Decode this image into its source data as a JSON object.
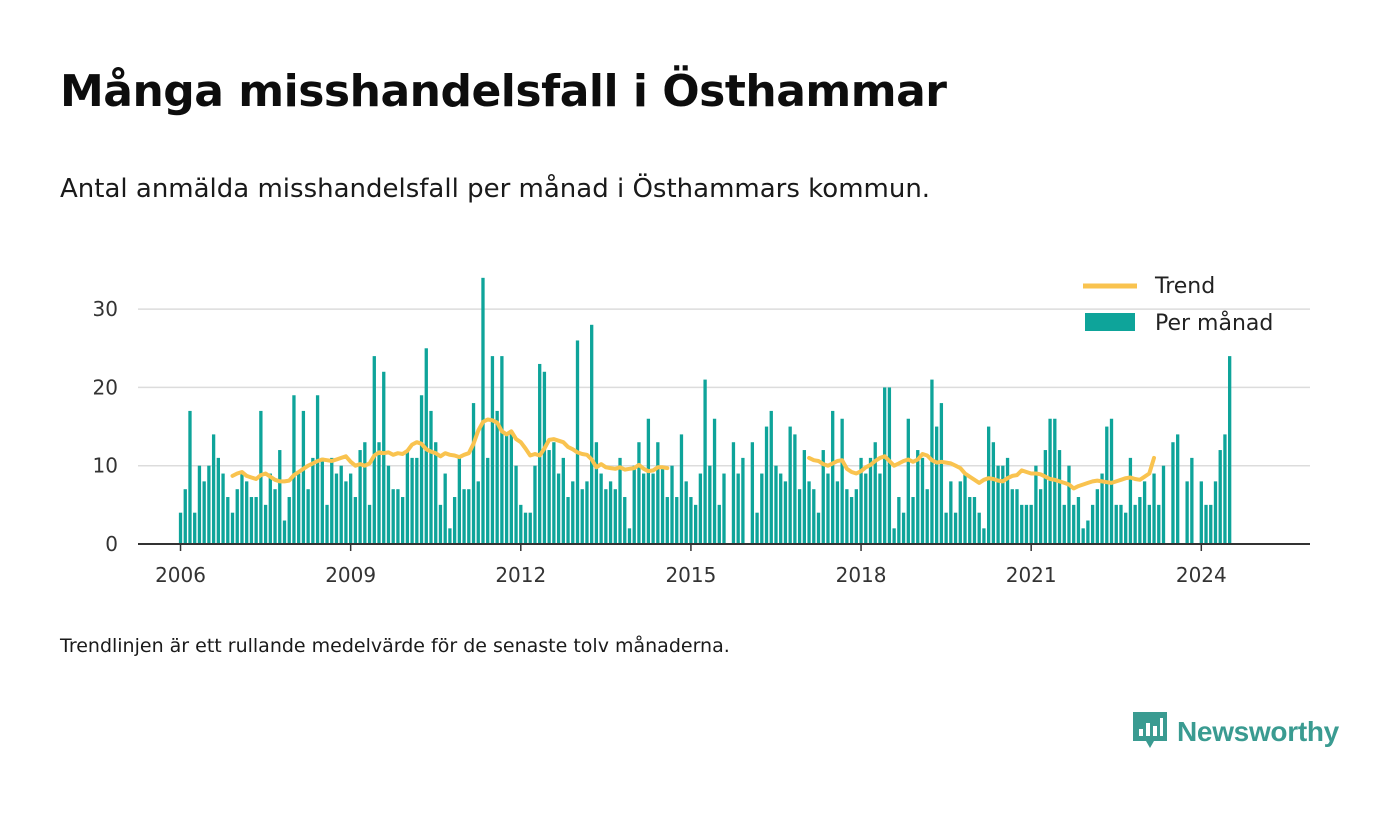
{
  "header": {
    "title": "Många misshandelsfall i Östhammar",
    "subtitle": "Antal anmälda misshandelsfall per månad i Östhammars kommun."
  },
  "footer": {
    "note": "Trendlinjen är ett rullande medelvärde för de senaste tolv månaderna.",
    "brand": "Newsworthy"
  },
  "colors": {
    "bars": "#0ea49a",
    "trend": "#f9c34f",
    "grid": "#dcdcdc",
    "axis": "#333333",
    "brand": "#3a9b91"
  },
  "chart_data": {
    "type": "bar",
    "title": "Många misshandelsfall i Östhammar",
    "subtitle": "Antal anmälda misshandelsfall per månad i Östhammars kommun.",
    "start": "2006-01",
    "xlim": [
      "2005-04",
      "2025-12"
    ],
    "ylim": [
      0,
      35
    ],
    "x_ticks": [
      "2006",
      "2009",
      "2012",
      "2015",
      "2018",
      "2021",
      "2024"
    ],
    "y_ticks": [
      0,
      10,
      20,
      30
    ],
    "grid": true,
    "legend_position": "top-right",
    "series": [
      {
        "name": "Per månad",
        "type": "bar",
        "values": [
          4,
          7,
          17,
          4,
          10,
          8,
          10,
          14,
          11,
          9,
          6,
          4,
          7,
          9,
          8,
          6,
          6,
          17,
          5,
          9,
          7,
          12,
          3,
          6,
          19,
          9,
          17,
          7,
          11,
          19,
          11,
          5,
          11,
          9,
          10,
          8,
          9,
          6,
          12,
          13,
          5,
          24,
          13,
          22,
          10,
          7,
          7,
          6,
          12,
          11,
          11,
          19,
          25,
          17,
          13,
          5,
          9,
          2,
          6,
          11,
          7,
          7,
          18,
          8,
          34,
          11,
          24,
          17,
          24,
          14,
          14,
          10,
          5,
          4,
          4,
          10,
          23,
          22,
          12,
          13,
          9,
          11,
          6,
          8,
          26,
          7,
          8,
          28,
          13,
          9,
          7,
          8,
          7,
          11,
          6,
          2,
          10,
          13,
          9,
          16,
          9,
          13,
          10,
          6,
          10,
          6,
          14,
          8,
          6,
          5,
          9,
          21,
          10,
          16,
          5,
          9,
          0,
          13,
          9,
          11,
          0,
          13,
          4,
          9,
          15,
          17,
          10,
          9,
          8,
          15,
          14,
          7,
          12,
          8,
          7,
          4,
          12,
          9,
          17,
          8,
          16,
          7,
          6,
          7,
          11,
          9,
          11,
          13,
          9,
          20,
          20,
          2,
          6,
          4,
          16,
          6,
          12,
          11,
          7,
          21,
          15,
          18,
          4,
          8,
          4,
          8,
          9,
          6,
          6,
          4,
          2,
          15,
          13,
          10,
          10,
          11,
          7,
          7,
          5,
          5,
          5,
          10,
          7,
          12,
          16,
          16,
          12,
          5,
          10,
          5,
          6,
          2,
          3,
          5,
          7,
          9,
          15,
          16,
          5,
          5,
          4,
          11,
          5,
          6,
          8,
          5,
          9,
          5,
          10,
          0,
          13,
          14,
          0,
          8,
          11,
          0,
          8,
          5,
          5,
          8,
          12,
          14,
          24
        ],
        "gaps": [
          "2015-11",
          "2016-03",
          "2021-09-to-2022-01-sparse",
          "2023-10",
          "2024-01"
        ]
      },
      {
        "name": "Trend",
        "type": "line",
        "segments": [
          {
            "start": "2006-12",
            "values": [
              8.7,
              9.0,
              9.2,
              8.7,
              8.5,
              8.3,
              8.8,
              9.0,
              8.6,
              8.2,
              8.0,
              8.0,
              8.1,
              8.8,
              9.2,
              9.6,
              10.0,
              10.3,
              10.6,
              10.8,
              10.7,
              10.6,
              10.8,
              11.0,
              11.2,
              10.5,
              10.0,
              10.2,
              10.0,
              10.3,
              11.3,
              11.7,
              11.6,
              11.7,
              11.4,
              11.6,
              11.5,
              11.9,
              12.7,
              13.0,
              12.8,
              12.1,
              11.8,
              11.6,
              11.2,
              11.6,
              11.4,
              11.3,
              11.1,
              11.4,
              11.6,
              12.8,
              14.5,
              15.6,
              15.9,
              15.8,
              15.5,
              14.4,
              14.0,
              14.4,
              13.4,
              13.0,
              12.2,
              11.3,
              11.5,
              11.3,
              12.2,
              13.3,
              13.4,
              13.2,
              13.0,
              12.4,
              12.1,
              11.7,
              11.5,
              11.4,
              10.8,
              9.8,
              10.2,
              9.8,
              9.7,
              9.6,
              9.8,
              9.5,
              9.6,
              9.7,
              10.1,
              9.6,
              9.3,
              9.4,
              9.8,
              9.8,
              9.7
            ]
          },
          {
            "start": "2017-02",
            "values": [
              11.0,
              10.7,
              10.6,
              10.2,
              10.0,
              10.3,
              10.6,
              10.7,
              9.6,
              9.2,
              9.0,
              9.3,
              9.8,
              10.1,
              10.6,
              11.0,
              11.2,
              10.6,
              10.0,
              10.3,
              10.6,
              10.8,
              10.5,
              10.8,
              11.5,
              11.3,
              10.7,
              10.4,
              10.5,
              10.4,
              10.3,
              10.0,
              9.7,
              9.0,
              8.6,
              8.2,
              7.8,
              8.2,
              8.4,
              8.3,
              8.1,
              8.0,
              8.4,
              8.7,
              8.8,
              9.4,
              9.2,
              9.0,
              9.0,
              8.9,
              8.6,
              8.3,
              8.2,
              8.0,
              7.8,
              7.6,
              7.1,
              7.4,
              7.6,
              7.8,
              8.0,
              8.1,
              8.0,
              7.9,
              7.8,
              8.0,
              8.2,
              8.4,
              8.5,
              8.3,
              8.2,
              8.6,
              9.0,
              11.0
            ]
          }
        ]
      }
    ]
  }
}
